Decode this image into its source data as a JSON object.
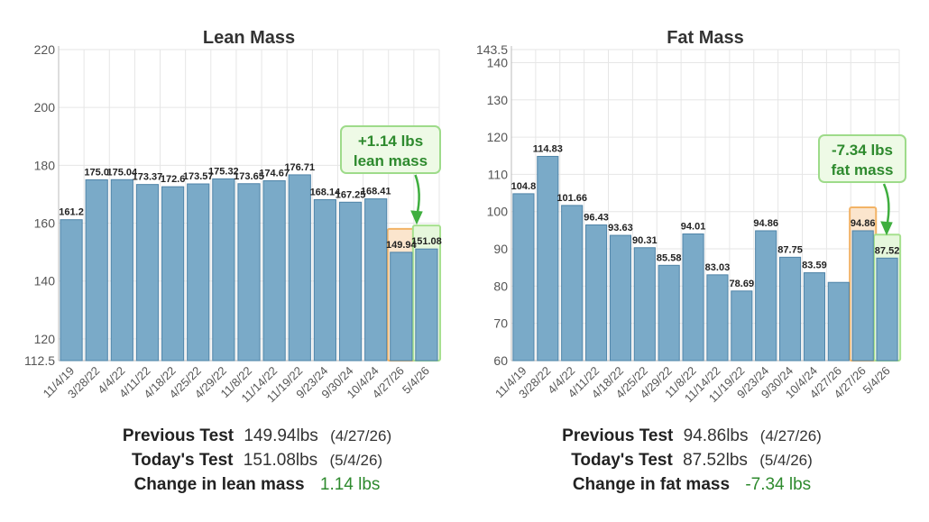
{
  "colors": {
    "bar": "#7aaac8",
    "bar_stroke": "#4f84a8",
    "grid": "#e6e6e6",
    "prev_highlight": "#f2b366",
    "prev_fill": "#fbe5cd",
    "today_highlight": "#a6e08e",
    "today_fill": "#e6f7dc",
    "callout_border": "#9edb8a",
    "callout_fill": "#eefae6",
    "callout_text": "#2e8a2e",
    "arrow": "#3fae3f"
  },
  "chart_data": [
    {
      "type": "bar",
      "title": "Lean Mass",
      "categories": [
        "11/4/19",
        "3/28/22",
        "4/4/22",
        "4/11/22",
        "4/18/22",
        "4/25/22",
        "4/29/22",
        "11/8/22",
        "11/14/22",
        "11/19/22",
        "9/23/24",
        "9/30/24",
        "10/4/24",
        "4/27/26",
        "5/4/26"
      ],
      "values": [
        161.2,
        175.0,
        175.04,
        173.37,
        172.6,
        173.57,
        175.32,
        173.65,
        174.67,
        176.71,
        168.14,
        167.25,
        168.41,
        149.94,
        151.08
      ],
      "data_labels": [
        "161.2",
        "175.0",
        "175.04",
        "173.37",
        "172.6",
        "173.57",
        "175.32",
        "173.65",
        "174.67",
        "176.71",
        "168.14",
        "167.25",
        "168.41",
        "149.94",
        "151.08"
      ],
      "y_ticks": [
        "112.5",
        "120",
        "140",
        "160",
        "180",
        "200",
        "220"
      ],
      "ylim": [
        112.5,
        220
      ],
      "grid": true,
      "highlight_previous_index": 13,
      "highlight_today_index": 14,
      "callout": {
        "line1": "+1.14 lbs",
        "line2": "lean mass"
      }
    },
    {
      "type": "bar",
      "title": "Fat Mass",
      "categories": [
        "11/4/19",
        "3/28/22",
        "4/4/22",
        "4/11/22",
        "4/18/22",
        "4/25/22",
        "4/29/22",
        "11/8/22",
        "11/14/22",
        "11/19/22",
        "9/23/24",
        "9/30/24",
        "10/4/24",
        "4/27/26",
        "4/27/26",
        "5/4/26"
      ],
      "values": [
        104.8,
        114.83,
        101.66,
        96.43,
        93.63,
        90.31,
        85.58,
        94.01,
        83.03,
        78.69,
        94.86,
        87.75,
        83.59,
        81.0,
        94.86,
        87.52
      ],
      "data_labels": [
        "104.8",
        "114.83",
        "101.66",
        "96.43",
        "93.63",
        "90.31",
        "85.58",
        "94.01",
        "83.03",
        "78.69",
        "94.86",
        "87.75",
        "83.59",
        "",
        "94.86",
        "87.52"
      ],
      "y_ticks": [
        "60",
        "70",
        "80",
        "90",
        "100",
        "110",
        "120",
        "130",
        "140",
        "143.5"
      ],
      "ylim": [
        60,
        143.5
      ],
      "grid": true,
      "highlight_previous_index": 14,
      "highlight_today_index": 15,
      "callout": {
        "line1": "-7.34 lbs",
        "line2": "fat mass"
      }
    }
  ],
  "summary_lean": {
    "previous_label": "Previous Test",
    "previous_value": "149.94lbs",
    "previous_date": "(4/27/26)",
    "today_label": "Today's Test",
    "today_value": "151.08lbs",
    "today_date": "(5/4/26)",
    "change_label": "Change in lean mass",
    "change_value": "1.14 lbs"
  },
  "summary_fat": {
    "previous_label": "Previous Test",
    "previous_value": "94.86lbs",
    "previous_date": "(4/27/26)",
    "today_label": "Today's Test",
    "today_value": "87.52lbs",
    "today_date": "(5/4/26)",
    "change_label": "Change in fat mass",
    "change_value": "-7.34 lbs"
  }
}
